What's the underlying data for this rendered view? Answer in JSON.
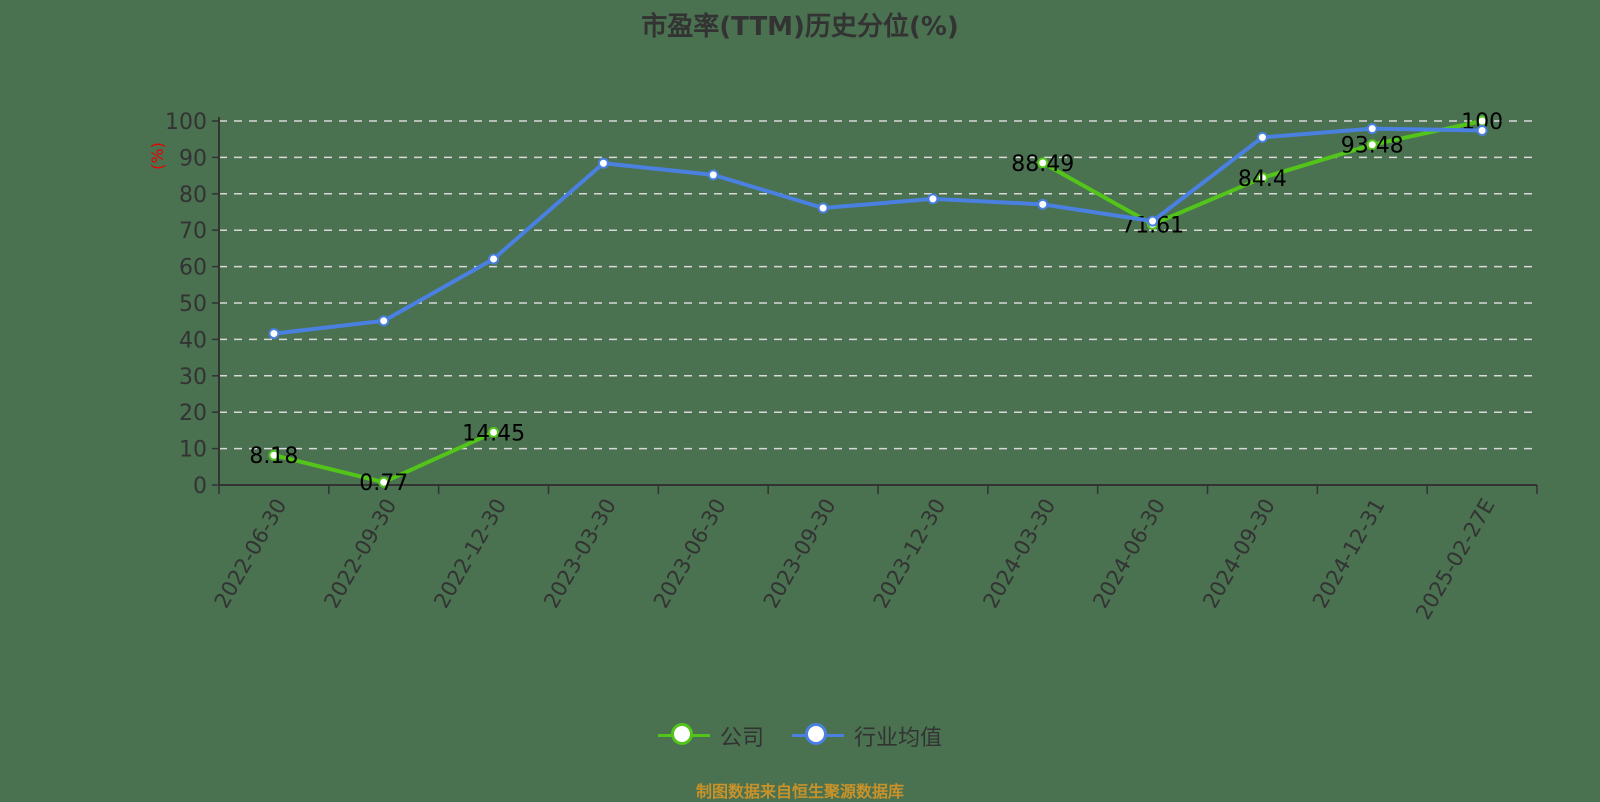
{
  "title": "市盈率(TTM)历史分位(%)",
  "footer": "制图数据来自恒生聚源数据库",
  "colors": {
    "background": "#4a7150",
    "company": "#52c41a",
    "industry": "#4a80e0",
    "axis": "#333333",
    "grid": "#d9d9d9",
    "yname": "#e60000",
    "footer": "#c8922a"
  },
  "legend": [
    {
      "name": "公司",
      "color": "#52c41a"
    },
    {
      "name": "行业均值",
      "color": "#4a80e0"
    }
  ],
  "chart_data": {
    "type": "line",
    "title": "市盈率(TTM)历史分位(%)",
    "xlabel": "",
    "ylabel": "(%)",
    "ylim": [
      0,
      100
    ],
    "yticks": [
      0,
      10,
      20,
      30,
      40,
      50,
      60,
      70,
      80,
      90,
      100
    ],
    "grid": true,
    "legend_position": "bottom",
    "categories": [
      "2022-06-30",
      "2022-09-30",
      "2022-12-30",
      "2023-03-30",
      "2023-06-30",
      "2023-09-30",
      "2023-12-30",
      "2024-03-30",
      "2024-06-30",
      "2024-09-30",
      "2024-12-31",
      "2025-02-27E"
    ],
    "series": [
      {
        "name": "公司",
        "values": [
          8.18,
          0.77,
          14.45,
          null,
          null,
          null,
          null,
          88.49,
          71.61,
          84.4,
          93.48,
          100
        ],
        "labels_shown": true
      },
      {
        "name": "行业均值",
        "values": [
          41.6,
          45.1,
          62.1,
          88.4,
          85.2,
          76.1,
          78.6,
          77.1,
          72.5,
          95.5,
          97.9,
          97.4
        ],
        "labels_shown": false
      }
    ]
  }
}
